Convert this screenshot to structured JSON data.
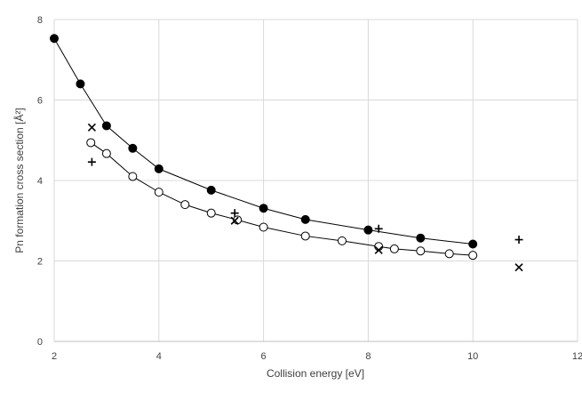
{
  "chart_data": {
    "type": "scatter",
    "title": "",
    "xlabel": "Collision energy [eV]",
    "ylabel": "Pn formation cross section [Å²]",
    "xlim": [
      2,
      12
    ],
    "ylim": [
      0,
      8
    ],
    "xticks": [
      "2",
      "4",
      "6",
      "8",
      "10",
      "12"
    ],
    "yticks": [
      "0",
      "2",
      "4",
      "6",
      "8"
    ],
    "grid": true,
    "legend": "none",
    "series": [
      {
        "marker": "filled-circle",
        "line": true,
        "color": "#000000",
        "points": [
          [
            2.0,
            7.53
          ],
          [
            2.5,
            6.4
          ],
          [
            3.0,
            5.36
          ],
          [
            3.5,
            4.8
          ],
          [
            4.0,
            4.29
          ],
          [
            5.0,
            3.76
          ],
          [
            6.0,
            3.31
          ],
          [
            6.8,
            3.03
          ],
          [
            8.0,
            2.77
          ],
          [
            9.0,
            2.57
          ],
          [
            10.0,
            2.42
          ]
        ]
      },
      {
        "marker": "open-circle",
        "line": true,
        "color": "#000000",
        "points": [
          [
            2.7,
            4.94
          ],
          [
            3.0,
            4.67
          ],
          [
            3.5,
            4.1
          ],
          [
            4.0,
            3.71
          ],
          [
            4.5,
            3.4
          ],
          [
            5.0,
            3.19
          ],
          [
            5.5,
            3.02
          ],
          [
            6.0,
            2.84
          ],
          [
            6.8,
            2.62
          ],
          [
            7.5,
            2.5
          ],
          [
            8.2,
            2.36
          ],
          [
            8.5,
            2.3
          ],
          [
            9.0,
            2.25
          ],
          [
            9.55,
            2.18
          ],
          [
            10.0,
            2.14
          ]
        ]
      },
      {
        "marker": "plus",
        "line": false,
        "color": "#000000",
        "points": [
          [
            2.72,
            4.46
          ],
          [
            5.45,
            3.19
          ],
          [
            8.2,
            2.8
          ],
          [
            10.88,
            2.53
          ]
        ]
      },
      {
        "marker": "cross",
        "line": false,
        "color": "#000000",
        "points": [
          [
            2.72,
            5.32
          ],
          [
            5.45,
            3.0
          ],
          [
            8.2,
            2.27
          ],
          [
            10.88,
            1.84
          ]
        ]
      }
    ]
  }
}
